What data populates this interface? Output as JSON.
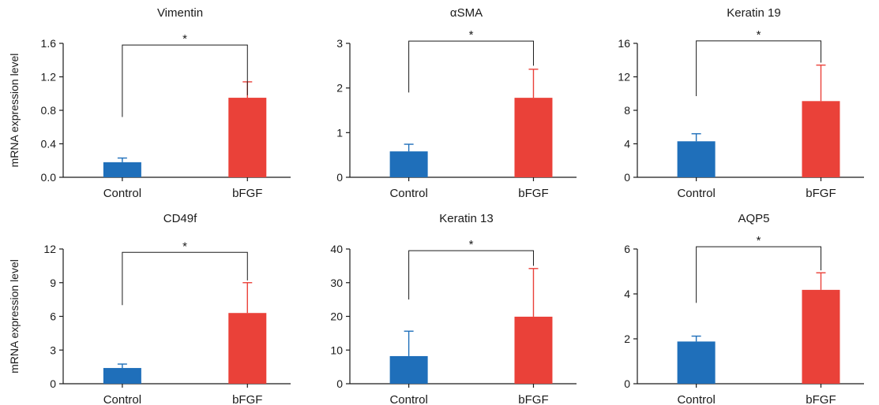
{
  "chart_data": [
    {
      "type": "bar",
      "title": "Vimentin",
      "ylabel": "mRNA expression level",
      "categories": [
        "Control",
        "bFGF"
      ],
      "values": [
        0.18,
        0.95
      ],
      "errors": [
        0.05,
        0.19
      ],
      "ylim": [
        0,
        1.6
      ],
      "yticks": [
        "0.0",
        "0.4",
        "0.8",
        "1.2",
        "1.6"
      ],
      "significance": "*",
      "bracket_from": [
        0.72,
        0.98
      ],
      "bracket_top": 1.58
    },
    {
      "type": "bar",
      "title": "αSMA",
      "ylabel": "",
      "categories": [
        "Control",
        "bFGF"
      ],
      "values": [
        0.58,
        1.78
      ],
      "errors": [
        0.16,
        0.64
      ],
      "ylim": [
        0,
        3
      ],
      "yticks": [
        "0",
        "1",
        "2",
        "3"
      ],
      "significance": "*",
      "bracket_from": [
        1.9,
        2.5
      ],
      "bracket_top": 3.05
    },
    {
      "type": "bar",
      "title": "Keratin 19",
      "ylabel": "",
      "categories": [
        "Control",
        "bFGF"
      ],
      "values": [
        4.3,
        9.1
      ],
      "errors": [
        0.9,
        4.3
      ],
      "ylim": [
        0,
        16
      ],
      "yticks": [
        "0",
        "4",
        "8",
        "12",
        "16"
      ],
      "significance": "*",
      "bracket_from": [
        9.7,
        13.7
      ],
      "bracket_top": 16.3
    },
    {
      "type": "bar",
      "title": "CD49f",
      "ylabel": "mRNA expression level",
      "categories": [
        "Control",
        "bFGF"
      ],
      "values": [
        1.4,
        6.3
      ],
      "errors": [
        0.35,
        2.7
      ],
      "ylim": [
        0,
        12
      ],
      "yticks": [
        "0",
        "3",
        "6",
        "9",
        "12"
      ],
      "significance": "*",
      "bracket_from": [
        7.0,
        9.2
      ],
      "bracket_top": 11.7
    },
    {
      "type": "bar",
      "title": "Keratin 13",
      "ylabel": "",
      "categories": [
        "Control",
        "bFGF"
      ],
      "values": [
        8.2,
        19.9
      ],
      "errors": [
        7.4,
        14.3
      ],
      "ylim": [
        0,
        40
      ],
      "yticks": [
        "0",
        "10",
        "20",
        "30",
        "40"
      ],
      "significance": "*",
      "bracket_from": [
        25.0,
        35.0
      ],
      "bracket_top": 39.5
    },
    {
      "type": "bar",
      "title": "AQP5",
      "ylabel": "",
      "categories": [
        "Control",
        "bFGF"
      ],
      "values": [
        1.88,
        4.18
      ],
      "errors": [
        0.24,
        0.76
      ],
      "ylim": [
        0,
        6
      ],
      "yticks": [
        "0",
        "2",
        "4",
        "6"
      ],
      "significance": "*",
      "bracket_from": [
        3.6,
        5.05
      ],
      "bracket_top": 6.1
    }
  ],
  "colors": {
    "control": "#1f6fba",
    "bfgf": "#ea4139",
    "axis": "#1a1a1a",
    "text": "#1a1a1a"
  }
}
